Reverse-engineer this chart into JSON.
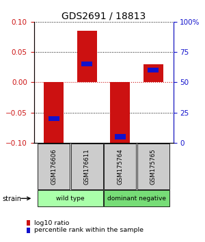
{
  "title": "GDS2691 / 18813",
  "samples": [
    "GSM176606",
    "GSM176611",
    "GSM175764",
    "GSM175765"
  ],
  "log10_ratio": [
    -0.1,
    0.085,
    -0.1,
    0.03
  ],
  "percentile_rank": [
    20,
    65,
    5,
    60
  ],
  "bar_width": 0.6,
  "ylim_left": [
    -0.1,
    0.1
  ],
  "ylim_right": [
    0,
    100
  ],
  "yticks_left": [
    -0.1,
    -0.05,
    0,
    0.05,
    0.1
  ],
  "yticks_right": [
    0,
    25,
    50,
    75,
    100
  ],
  "ytick_labels_right": [
    "0",
    "25",
    "50",
    "75",
    "100%"
  ],
  "groups": [
    {
      "label": "wild type",
      "samples": [
        0,
        1
      ],
      "color": "#aaffaa"
    },
    {
      "label": "dominant negative",
      "samples": [
        2,
        3
      ],
      "color": "#77dd77"
    }
  ],
  "group_row_color": "#cccccc",
  "red_color": "#cc1111",
  "blue_color": "#1111cc",
  "hline_color": "#cc1111",
  "grid_color": "#000000",
  "legend_red_label": "log10 ratio",
  "legend_blue_label": "percentile rank within the sample",
  "strain_label": "strain",
  "title_fontsize": 10,
  "tick_fontsize": 7.5,
  "label_fontsize": 7
}
